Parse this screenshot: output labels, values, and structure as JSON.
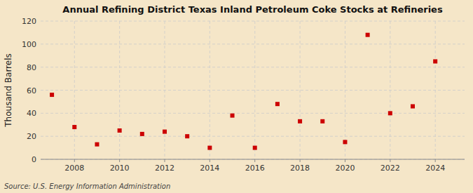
{
  "chart_data": {
    "type": "scatter",
    "title": "Annual Refining District Texas Inland Petroleum Coke Stocks at Refineries",
    "ylabel": "Thousand Barrels",
    "annotations": [
      "Source: U.S. Energy Information Administration"
    ],
    "x": [
      2007,
      2008,
      2009,
      2010,
      2011,
      2012,
      2013,
      2014,
      2015,
      2016,
      2017,
      2018,
      2019,
      2020,
      2021,
      2022,
      2023,
      2024
    ],
    "values": [
      56,
      28,
      13,
      25,
      22,
      24,
      20,
      10,
      38,
      10,
      48,
      33,
      33,
      15,
      108,
      40,
      46,
      85
    ],
    "color": "#cc0000",
    "marker": "square",
    "xlim": [
      2006.5,
      2025.3
    ],
    "xticks": [
      2008,
      2010,
      2012,
      2014,
      2016,
      2018,
      2020,
      2022,
      2024
    ],
    "ylim": [
      0,
      120
    ],
    "yticks": [
      0,
      20,
      40,
      60,
      80,
      100,
      120
    ],
    "grid": true
  }
}
